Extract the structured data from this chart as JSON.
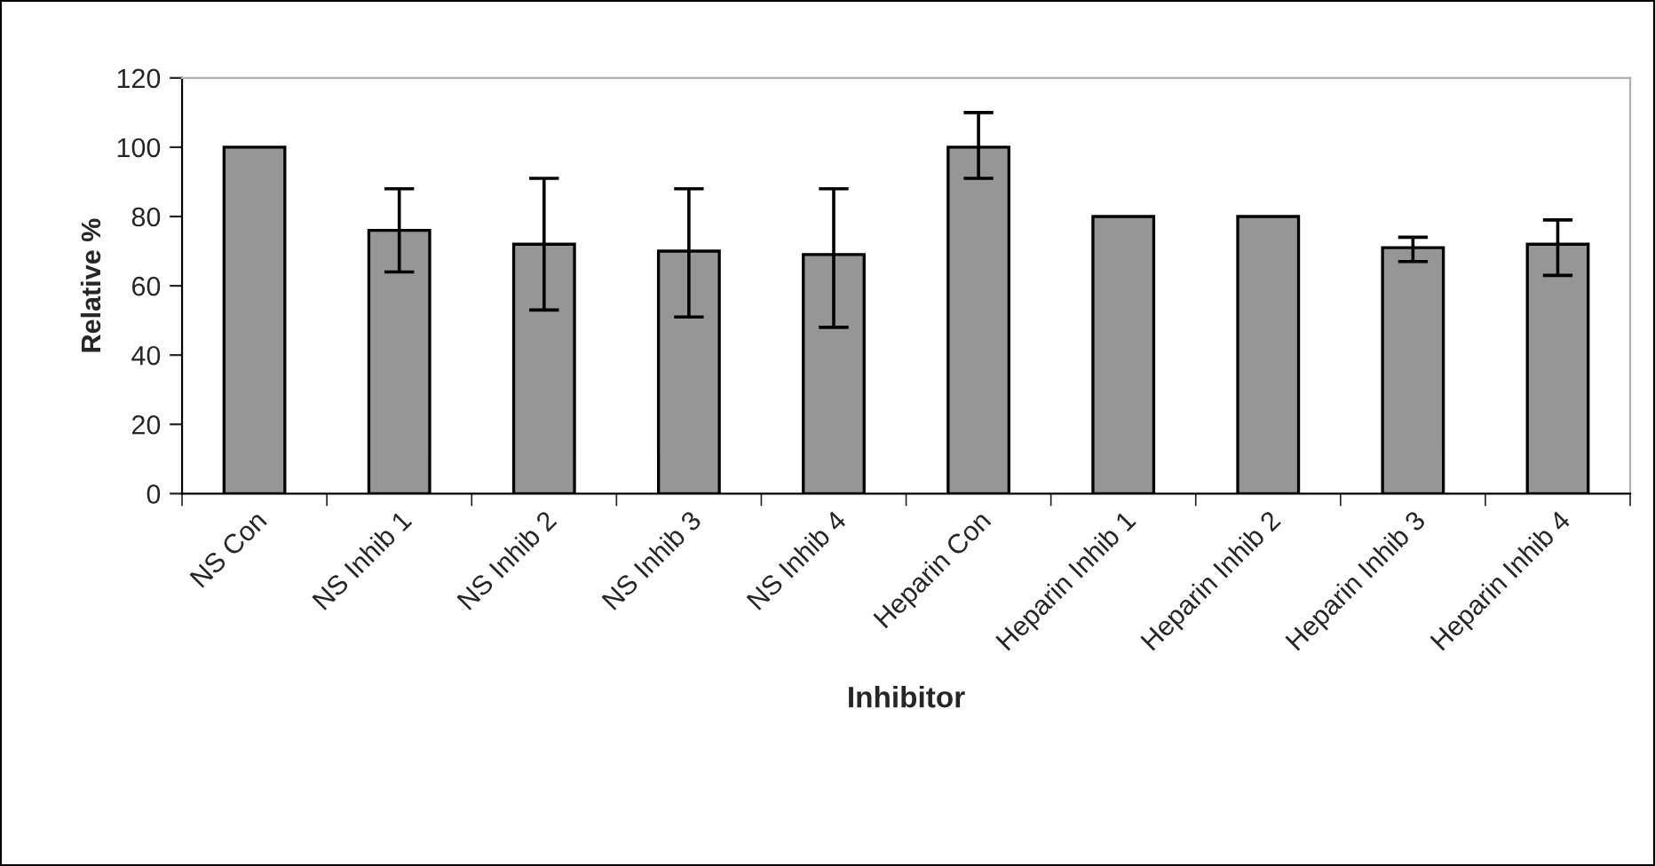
{
  "chart_data": {
    "type": "bar",
    "xlabel": "Inhibitor",
    "ylabel": "Relative %",
    "categories": [
      "NS Con",
      "NS Inhib 1",
      "NS Inhib 2",
      "NS Inhib 3",
      "NS Inhib 4",
      "Heparin Con",
      "Heparin Inhib 1",
      "Heparin Inhib 2",
      "Heparin Inhib 3",
      "Heparin Inhib 4"
    ],
    "values": [
      100,
      76,
      72,
      70,
      69,
      100,
      80,
      80,
      71,
      72
    ],
    "errors": [
      null,
      [
        64,
        88
      ],
      [
        53,
        91
      ],
      [
        51,
        88
      ],
      [
        48,
        88
      ],
      [
        91,
        110
      ],
      null,
      null,
      [
        67,
        74
      ],
      [
        63,
        79
      ]
    ],
    "color": "#969696",
    "ylim": [
      0,
      120
    ],
    "yticks": [
      0,
      20,
      40,
      60,
      80,
      100,
      120
    ],
    "grid": false,
    "legend": false
  }
}
